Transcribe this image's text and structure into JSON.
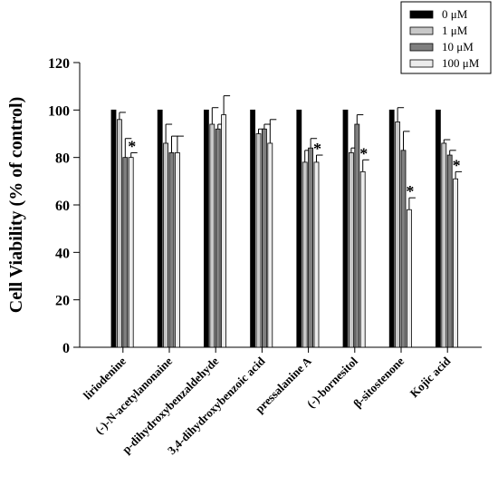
{
  "chart_data": {
    "type": "bar",
    "title": "",
    "xlabel": "",
    "ylabel": "Cell Viability (% of control)",
    "ylim": [
      0,
      120
    ],
    "yticks": [
      0,
      20,
      40,
      60,
      80,
      100,
      120
    ],
    "grid": false,
    "legend_position": "top-right",
    "categories": [
      "liriodenine",
      "(-)-N-acetylanonaine",
      "p-dihydroxybenzaldehyde",
      "3,4-dihydroxybenzoic acid",
      "pressalanine A",
      "(-)-bornesitol",
      "β-sitostenone",
      "Kojic acid"
    ],
    "series": [
      {
        "name": "0 μM",
        "color": "#000000",
        "values": [
          100,
          100,
          100,
          100,
          100,
          100,
          100,
          100
        ],
        "errors": [
          0,
          0,
          0,
          0,
          0,
          0,
          0,
          0
        ],
        "significant": [
          false,
          false,
          false,
          false,
          false,
          false,
          false,
          false
        ]
      },
      {
        "name": "1 μM",
        "color": "#c8c8c8",
        "values": [
          96,
          86,
          94,
          90,
          78,
          82,
          95,
          86
        ],
        "errors": [
          3,
          8,
          7,
          2,
          5,
          2,
          6,
          1.5
        ],
        "significant": [
          false,
          false,
          false,
          false,
          false,
          false,
          false,
          false
        ]
      },
      {
        "name": "10 μM",
        "color": "#7f7f7f",
        "values": [
          80,
          82,
          92,
          92,
          84,
          94,
          83,
          81
        ],
        "errors": [
          8,
          7,
          2,
          2,
          4,
          4,
          8,
          2
        ],
        "significant": [
          false,
          false,
          false,
          false,
          false,
          false,
          false,
          false
        ]
      },
      {
        "name": "100 μM",
        "color": "#ececec",
        "values": [
          80,
          82,
          98,
          86,
          78,
          74,
          58,
          71
        ],
        "errors": [
          2,
          7,
          8,
          10,
          3,
          5,
          5,
          3
        ],
        "significant": [
          true,
          false,
          false,
          false,
          true,
          true,
          true,
          true
        ]
      }
    ],
    "annotation_symbol": "*"
  }
}
